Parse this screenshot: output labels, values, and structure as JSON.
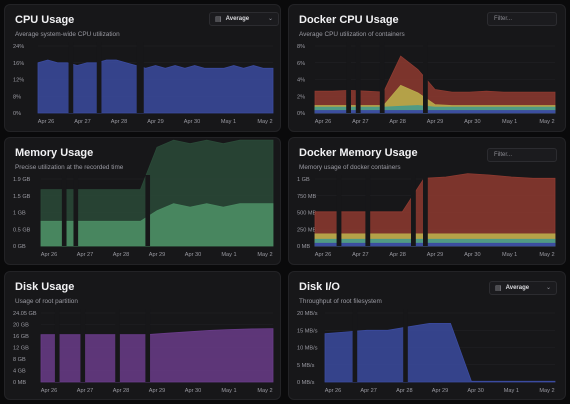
{
  "panels": [
    {
      "id": "cpu",
      "title": "CPU Usage",
      "subtitle": "Average system-wide CPU utilization",
      "control": {
        "type": "select",
        "value": "Average"
      },
      "chart_data": {
        "type": "area",
        "y_ticks": [
          "24%",
          "16%",
          "12%",
          "8%",
          "0%"
        ],
        "x_ticks": [
          "Apr 26",
          "Apr 27",
          "Apr 28",
          "Apr 29",
          "Apr 30",
          "May 1",
          "May 2"
        ],
        "ylim": [
          0,
          24
        ],
        "series": [
          {
            "values": [
              18,
              19,
              18,
              18,
              17,
              18,
              18,
              19,
              19,
              18,
              17,
              16,
              17,
              16,
              17,
              16,
              17,
              16,
              16,
              16,
              17,
              16,
              17,
              16,
              16
            ],
            "color": "#3b4ba0"
          }
        ]
      }
    },
    {
      "id": "docker-cpu",
      "title": "Docker CPU Usage",
      "subtitle": "Average CPU utilization of containers",
      "control": {
        "type": "filter",
        "placeholder": "Filter..."
      },
      "chart_data": {
        "type": "area",
        "y_ticks": [
          "8%",
          "6%",
          "4%",
          "2%",
          "0%"
        ],
        "x_ticks": [
          "Apr 26",
          "Apr 27",
          "Apr 28",
          "Apr 29",
          "Apr 30",
          "May 1",
          "May 2"
        ],
        "ylim": [
          0,
          8
        ],
        "series": [
          {
            "values": [
              0.3,
              0.3,
              0.3,
              0.3,
              0.3,
              0.3,
              0.3,
              0.3,
              0.3,
              0.3,
              0.3,
              0.3,
              0.3,
              0.3,
              0.3
            ],
            "color": "#3b4ba0"
          },
          {
            "values": [
              0.4,
              0.4,
              0.4,
              0.4,
              0.4,
              0.5,
              0.6,
              0.4,
              0.4,
              0.4,
              0.4,
              0.4,
              0.4,
              0.4,
              0.4
            ],
            "color": "#4b9a88"
          },
          {
            "values": [
              0.2,
              0.2,
              0.2,
              0.2,
              0.2,
              2.5,
              1.5,
              0.3,
              0.2,
              0.2,
              0.2,
              0.2,
              0.2,
              0.2,
              0.2
            ],
            "color": "#b7a84a"
          },
          {
            "values": [
              1.7,
              1.7,
              1.8,
              1.7,
              1.6,
              3.5,
              2.8,
              1.8,
              1.6,
              1.6,
              1.7,
              1.6,
              1.6,
              1.6,
              1.6
            ],
            "color": "#8e3a30"
          }
        ]
      }
    },
    {
      "id": "memory",
      "title": "Memory Usage",
      "subtitle": "Precise utilization at the recorded time",
      "chart_data": {
        "type": "area",
        "y_ticks": [
          "1.9 GB",
          "1.5 GB",
          "1 GB",
          "0.5 GB",
          "0 GB"
        ],
        "x_ticks": [
          "Apr 26",
          "Apr 27",
          "Apr 28",
          "Apr 29",
          "Apr 30",
          "May 1",
          "May 2"
        ],
        "ylim": [
          0,
          1.9
        ],
        "series": [
          {
            "values": [
              0.7,
              0.7,
              0.7,
              0.7,
              0.7,
              0.7,
              0.7,
              1.0,
              1.2,
              1.1,
              1.2,
              1.1,
              1.2,
              1.2,
              1.2
            ],
            "color": "#4a8a62"
          },
          {
            "values": [
              0.9,
              0.9,
              0.9,
              0.9,
              0.9,
              0.9,
              0.9,
              1.8,
              1.8,
              1.8,
              1.8,
              1.8,
              1.8,
              1.8,
              1.8
            ],
            "color": "#2a4a38"
          }
        ]
      }
    },
    {
      "id": "docker-memory",
      "title": "Docker Memory Usage",
      "subtitle": "Memory usage of docker containers",
      "control": {
        "type": "filter",
        "placeholder": "Filter..."
      },
      "chart_data": {
        "type": "area",
        "y_ticks": [
          "1 GB",
          "750 MB",
          "500 MB",
          "250 MB",
          "0 MB"
        ],
        "x_ticks": [
          "Apr 26",
          "Apr 27",
          "Apr 28",
          "Apr 29",
          "Apr 30",
          "May 1",
          "May 2"
        ],
        "ylim": [
          0,
          1000
        ],
        "series": [
          {
            "values": [
              40,
              40,
              40,
              40,
              40,
              40,
              40,
              40,
              40,
              40,
              40,
              40
            ],
            "color": "#3b4ba0"
          },
          {
            "values": [
              60,
              60,
              60,
              60,
              60,
              60,
              60,
              60,
              60,
              60,
              60,
              60
            ],
            "color": "#4b9a88"
          },
          {
            "values": [
              80,
              80,
              80,
              80,
              80,
              80,
              80,
              80,
              80,
              80,
              80,
              80
            ],
            "color": "#b7a84a"
          },
          {
            "values": [
              330,
              330,
              330,
              330,
              330,
              830,
              850,
              900,
              880,
              850,
              830,
              830
            ],
            "color": "#8e3a30"
          }
        ]
      }
    },
    {
      "id": "disk",
      "title": "Disk Usage",
      "subtitle": "Usage of root partition",
      "chart_data": {
        "type": "area",
        "y_ticks": [
          "24.05 GB",
          "20 GB",
          "16 GB",
          "12 GB",
          "8 GB",
          "4 GB",
          "0 MB"
        ],
        "x_ticks": [
          "Apr 26",
          "Apr 27",
          "Apr 28",
          "Apr 29",
          "Apr 30",
          "May 1",
          "May 2"
        ],
        "ylim": [
          0,
          24.05
        ],
        "series": [
          {
            "values": [
              16.5,
              16.5,
              16.5,
              16.5,
              16.5,
              16.5,
              17,
              17.5,
              18,
              18.3,
              18.5,
              18.6
            ],
            "color": "#6a3c8a"
          }
        ]
      }
    },
    {
      "id": "disk-io",
      "title": "Disk I/O",
      "subtitle": "Throughput of root filesystem",
      "control": {
        "type": "select",
        "value": "Average"
      },
      "chart_data": {
        "type": "area",
        "y_ticks": [
          "20 MB/s",
          "15 MB/s",
          "10 MB/s",
          "5 MB/s",
          "0 MB/s"
        ],
        "x_ticks": [
          "Apr 26",
          "Apr 27",
          "Apr 28",
          "Apr 29",
          "Apr 30",
          "May 1",
          "May 2"
        ],
        "ylim": [
          0,
          20
        ],
        "series": [
          {
            "values": [
              14,
              14.5,
              15,
              15,
              16,
              17,
              17,
              0.2,
              0.2,
              0.2,
              0.2,
              0.2
            ],
            "color": "#3b4ba0"
          }
        ]
      }
    }
  ]
}
